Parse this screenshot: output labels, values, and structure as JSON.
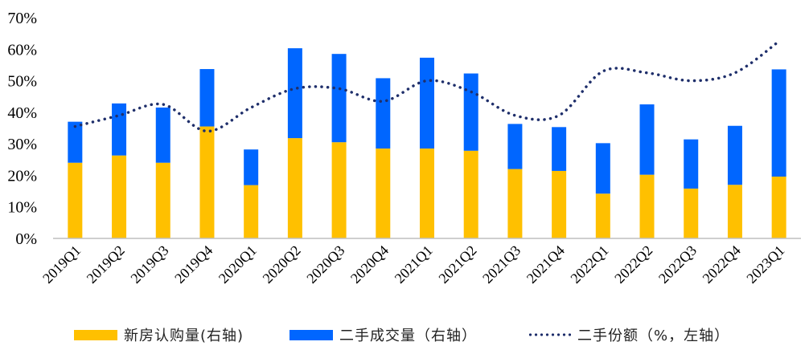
{
  "colors": {
    "new": "#FFC000",
    "second": "#0066FF",
    "share": "#1F2F6B",
    "axis": "#BFBFBF"
  },
  "legend": {
    "new_label": "新房认购量(右轴)",
    "second_label": "二手成交量（右轴）",
    "share_label": "二手份额（%，左轴）"
  },
  "chart_data": {
    "type": "bar",
    "stacked": true,
    "categories": [
      "2019Q1",
      "2019Q2",
      "2019Q3",
      "2019Q4",
      "2020Q1",
      "2020Q2",
      "2020Q3",
      "2020Q4",
      "2021Q1",
      "2021Q2",
      "2021Q3",
      "2021Q4",
      "2022Q1",
      "2022Q2",
      "2022Q3",
      "2022Q4",
      "2023Q1"
    ],
    "series": [
      {
        "name": "新房认购量(右轴)",
        "type": "bar",
        "values": [
          24.0,
          26.3,
          24.0,
          35.5,
          16.9,
          31.8,
          30.5,
          28.5,
          28.5,
          27.8,
          22.0,
          21.4,
          14.2,
          20.2,
          15.8,
          17.0,
          19.6
        ]
      },
      {
        "name": "二手成交量（右轴）",
        "type": "bar",
        "values": [
          13.0,
          16.5,
          17.5,
          18.2,
          11.3,
          28.5,
          28.0,
          22.3,
          28.8,
          24.5,
          14.3,
          13.9,
          16.0,
          22.3,
          15.6,
          18.7,
          34.0
        ]
      },
      {
        "name": "二手份额（%，左轴）",
        "type": "line",
        "style": "dotted",
        "values": [
          35.5,
          39.0,
          42.5,
          34.0,
          41.5,
          47.5,
          47.5,
          43.5,
          50.0,
          46.5,
          39.0,
          39.0,
          53.0,
          52.5,
          50.0,
          52.5,
          62.5
        ]
      }
    ],
    "yticks": [
      "0%",
      "10%",
      "20%",
      "30%",
      "40%",
      "50%",
      "60%",
      "70%"
    ],
    "ylim": [
      0,
      70
    ],
    "grid": false,
    "legend_position": "bottom"
  }
}
